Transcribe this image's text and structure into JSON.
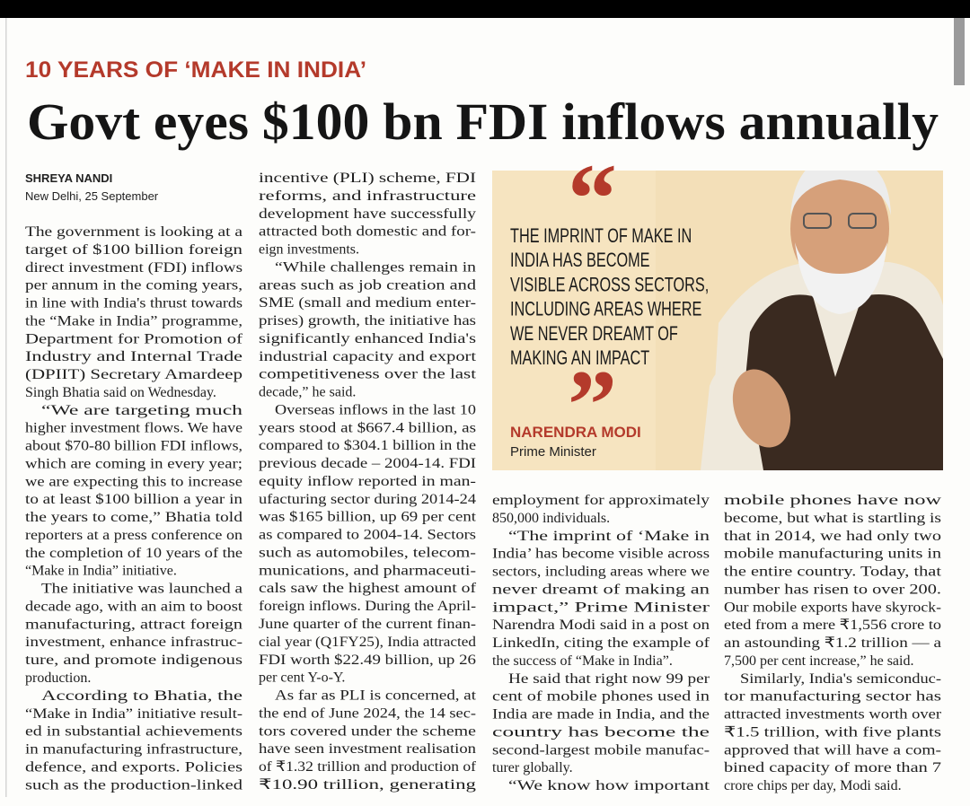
{
  "kicker": "10 YEARS OF ‘MAKE IN INDIA’",
  "headline": "Govt eyes $100 bn FDI inflows annually",
  "byline": {
    "author": "SHREYA NANDI",
    "dateline": "New Delhi, 25 September"
  },
  "columns": [
    [
      [
        "The government is looking at a",
        "target of $100 billion foreign",
        "direct investment (FDI) inflows",
        "per annum in the coming years,",
        "in line with India's thrust towards",
        "the “Make in India” programme,",
        "Department for Promotion of",
        "Industry and Internal Trade",
        "(DPIIT) Secretary Amardeep",
        "Singh Bhatia said on Wednesday."
      ],
      [
        "“We are targeting much",
        "higher investment flows. We have",
        "about $70-80 billion FDI inflows,",
        "which are coming in every year;",
        "we are expecting this to increase",
        "to at least $100 billion a year in",
        "the years to come,” Bhatia told",
        "reporters at a press conference on",
        "the completion of 10 years of the",
        "“Make in India” initiative."
      ],
      [
        "The initiative was launched a",
        "decade ago, with an aim to boost",
        "manufacturing, attract foreign",
        "investment, enhance infrastruc-",
        "ture, and promote indigenous",
        "production."
      ],
      [
        "According to Bhatia, the",
        "“Make in India” initiative result-",
        "ed in substantial achievements",
        "in manufacturing infrastructure,",
        "defence, and exports. Policies",
        "such as the production-linked"
      ]
    ],
    [
      [
        "incentive (PLI) scheme, FDI",
        "reforms, and infrastructure",
        "development have successfully",
        "attracted both domestic and for-",
        "eign investments."
      ],
      [
        "“While challenges remain in",
        "areas such as job creation and",
        "SME (small and medium enter-",
        "prises) growth, the initiative has",
        "significantly enhanced India's",
        "industrial capacity and export",
        "competitiveness over the last",
        "decade,” he said."
      ],
      [
        "Overseas inflows in the last 10",
        "years stood at $667.4 billion, as",
        "compared to $304.1 billion in the",
        "previous decade – 2004-14. FDI",
        "equity inflow reported in man-",
        "ufacturing sector during 2014-24",
        "was $165 billion, up 69 per cent",
        "as compared to 2004-14. Sectors",
        "such as automobiles, telecom-",
        "munications, and pharmaceuti-",
        "cals saw the highest amount of",
        "foreign inflows. During the April-",
        "June quarter of the current finan-",
        "cial year (Q1FY25), India attracted",
        "FDI worth $22.49 billion, up 26",
        "per cent Y-o-Y."
      ],
      [
        "As far as PLI is concerned, at",
        "the end of June 2024, the 14 sec-",
        "tors covered under the scheme",
        "have seen investment realisation",
        "of ₹1.32 trillion and production of",
        "₹10.90 trillion, generating"
      ]
    ],
    [
      [
        "employment for approximately",
        "850,000 individuals."
      ],
      [
        "“The imprint of ‘Make in",
        "India’ has become visible across",
        "sectors, including areas where we",
        "never dreamt of making an",
        "impact,” Prime Minister",
        "Narendra Modi said in a post on",
        "LinkedIn, citing the example of",
        "the success of “Make in India”."
      ],
      [
        "He said that right now 99 per",
        "cent of mobile phones used in",
        "India are made in India, and the",
        "country has become the",
        "second-largest mobile manufac-",
        "turer globally."
      ],
      [
        "“We know how important"
      ]
    ],
    [
      [
        "mobile phones have now",
        "become, but what is startling is",
        "that in 2014, we had only two",
        "mobile manufacturing units in",
        "the entire country. Today, that",
        "number has risen to over 200.",
        "Our mobile exports have skyrock-",
        "eted from a mere ₹1,556 crore to",
        "an astounding ₹1.2 trillion — a",
        "7,500 per cent increase,” he said."
      ],
      [
        "Similarly, India's semiconduc-",
        "tor manufacturing sector has",
        "attracted investments worth over",
        "₹1.5 trillion, with five plants",
        "approved that will have a com-",
        "bined capacity of more than 7",
        "crore chips per day, Modi said."
      ]
    ]
  ],
  "pull_quote": {
    "open_mark": "“",
    "lines": [
      "THE IMPRINT OF MAKE IN",
      "INDIA HAS BECOME",
      "VISIBLE ACROSS SECTORS,",
      "INCLUDING AREAS WHERE",
      "WE NEVER DREAMT OF",
      "MAKING AN IMPACT"
    ],
    "close_mark": "”",
    "name": "NARENDRA MODI",
    "role": "Prime Minister"
  }
}
